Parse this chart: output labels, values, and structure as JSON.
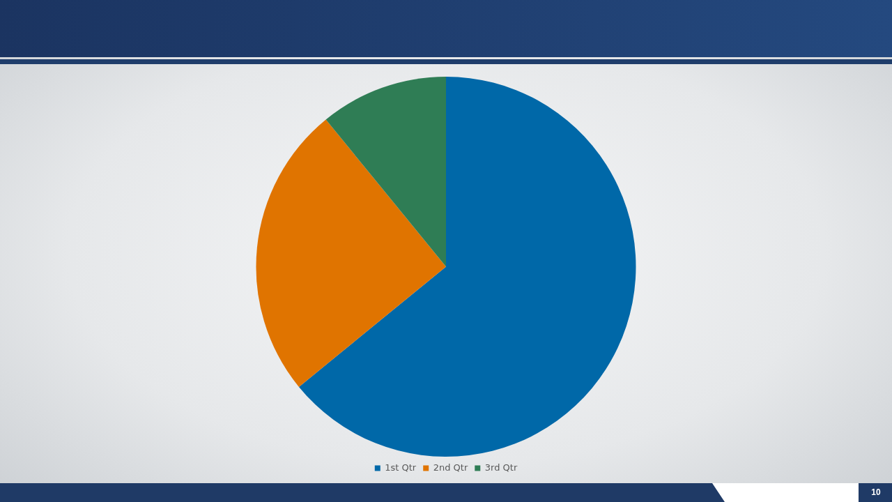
{
  "chart_data": {
    "type": "pie",
    "categories": [
      "1st Qtr",
      "2nd Qtr",
      "3rd Qtr"
    ],
    "values": [
      64.1,
      25.0,
      10.9
    ],
    "colors": [
      "#0068a8",
      "#e07400",
      "#2f7d55"
    ],
    "legend": "bottom",
    "annotations": [
      "10"
    ]
  }
}
